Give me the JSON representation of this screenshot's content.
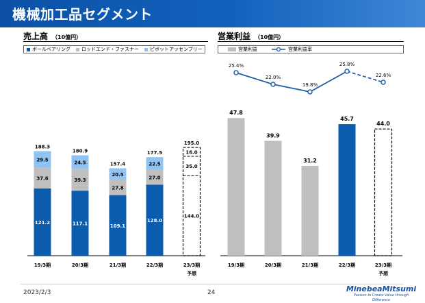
{
  "header": {
    "title": "機械加工品セグメント"
  },
  "sales": {
    "title": "売上高",
    "unit": "（10億円）",
    "legend": [
      "ボールベアリング",
      "ロッドエンド・ファスナー",
      "ピボットアッセンブリー"
    ]
  },
  "profit": {
    "title": "営業利益",
    "unit": "（10億円）",
    "legend": [
      "営業利益",
      "営業利益率"
    ]
  },
  "footer": {
    "date": "2023/2/3",
    "page": "24"
  },
  "logo": {
    "name": "MinebeaMitsumi",
    "tagline": "Passion to Create Value through Difference"
  },
  "colors": {
    "header": "#0b50a6",
    "ball": "#0b5cad",
    "rod": "#bfbfbf",
    "pivot": "#8fc3f3",
    "profit": "#bfbfbf",
    "line": "#1f5ea8"
  },
  "chart_data": [
    {
      "type": "bar",
      "stacked": true,
      "title": "売上高",
      "unit": "10億円",
      "categories": [
        "19/3期",
        "20/3期",
        "21/3期",
        "22/3期",
        "23/3期"
      ],
      "category_notes": [
        "",
        "",
        "",
        "",
        "予想"
      ],
      "series": [
        {
          "name": "ボールベアリング",
          "values": [
            121.2,
            117.1,
            109.1,
            128.0,
            144.0
          ]
        },
        {
          "name": "ロッドエンド・ファスナー",
          "values": [
            37.6,
            39.3,
            27.8,
            27.0,
            35.0
          ]
        },
        {
          "name": "ピボットアッセンブリー",
          "values": [
            29.5,
            24.5,
            20.5,
            22.5,
            16.0
          ]
        }
      ],
      "totals": [
        188.3,
        180.9,
        157.4,
        177.5,
        195.0
      ],
      "forecast_index": 4,
      "ylim": [
        0,
        200
      ]
    },
    {
      "type": "bar",
      "title": "営業利益",
      "unit": "10億円",
      "categories": [
        "19/3期",
        "20/3期",
        "21/3期",
        "22/3期",
        "23/3期"
      ],
      "category_notes": [
        "",
        "",
        "",
        "",
        "予想"
      ],
      "series": [
        {
          "name": "営業利益",
          "type": "bar",
          "values": [
            47.8,
            39.9,
            31.2,
            45.7,
            44.0
          ]
        },
        {
          "name": "営業利益率",
          "type": "line",
          "values": [
            25.4,
            22.0,
            19.8,
            25.8,
            22.6
          ],
          "labels": [
            "25.4%",
            "22.0%",
            "19.8%",
            "25.8%",
            "22.6%"
          ]
        }
      ],
      "highlight_index": 3,
      "forecast_index": 4,
      "ylim": [
        0,
        60
      ],
      "line_ylim": [
        10,
        30
      ]
    }
  ]
}
